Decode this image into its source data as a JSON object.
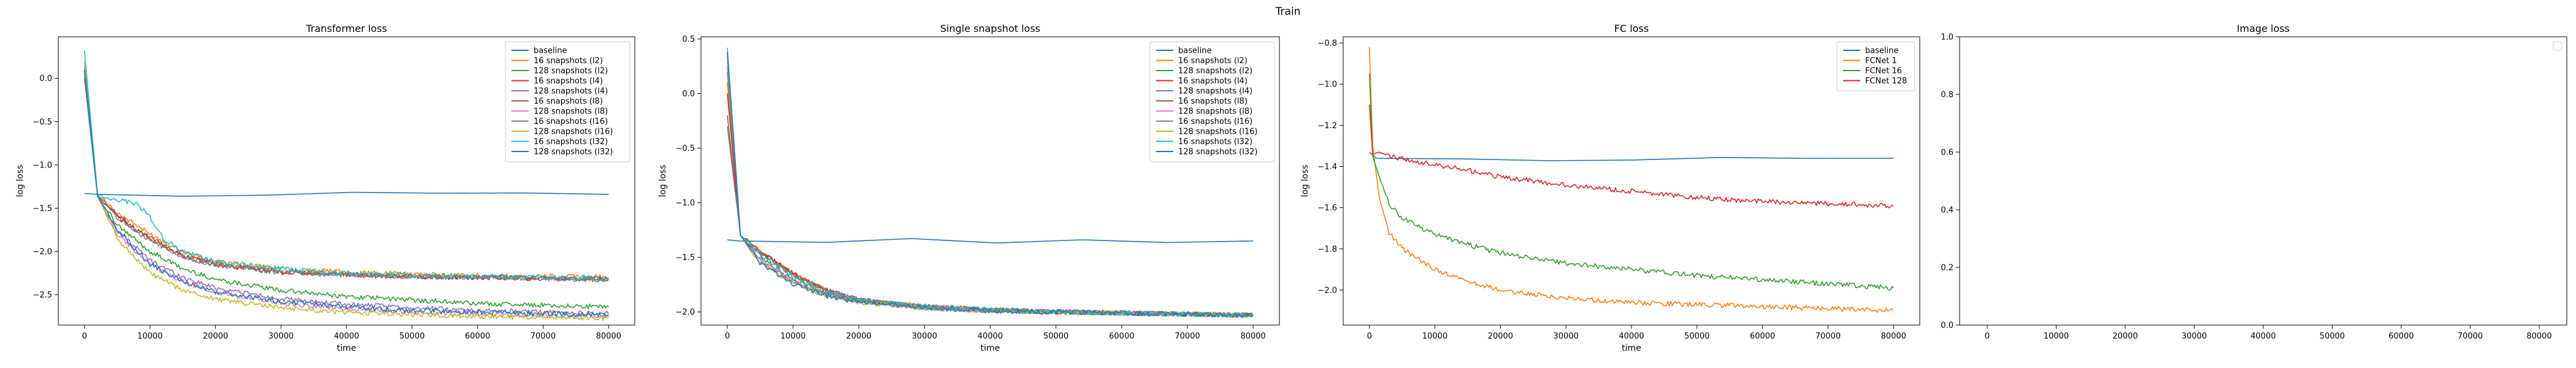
{
  "figure": {
    "title": "Train"
  },
  "chart_data": [
    {
      "type": "line",
      "title": "Transformer loss",
      "xlabel": "time",
      "ylabel": "log loss",
      "xlim": [
        -4000,
        84000
      ],
      "ylim": [
        -2.85,
        0.48
      ],
      "xticks": [
        0,
        10000,
        20000,
        30000,
        40000,
        50000,
        60000,
        70000,
        80000
      ],
      "yticks": [
        -2.5,
        -2.0,
        -1.5,
        -1.0,
        -0.5,
        0.0
      ],
      "ytick_labels": [
        "−2.5",
        "−2.0",
        "−1.5",
        "−1.0",
        "−0.5",
        "0.0"
      ],
      "grid": false,
      "legend_position": "upper-right",
      "series": [
        {
          "name": "baseline",
          "color": "#1f77b4",
          "x": [
            0,
            2000,
            80000
          ],
          "y": [
            -1.33,
            -1.34,
            -1.34
          ]
        },
        {
          "name": "16 snapshots (l2)",
          "color": "#ff7f0e",
          "x": [
            0,
            2000,
            5000,
            10000,
            15000,
            20000,
            30000,
            40000,
            50000,
            60000,
            70000,
            80000
          ],
          "y": [
            0.05,
            -1.35,
            -1.55,
            -1.8,
            -2.0,
            -2.12,
            -2.2,
            -2.24,
            -2.26,
            -2.28,
            -2.29,
            -2.3
          ]
        },
        {
          "name": "128 snapshots (l2)",
          "color": "#2ca02c",
          "x": [
            0,
            2000,
            5000,
            10000,
            15000,
            20000,
            30000,
            40000,
            50000,
            60000,
            70000,
            80000
          ],
          "y": [
            0.1,
            -1.36,
            -1.7,
            -2.0,
            -2.2,
            -2.32,
            -2.45,
            -2.52,
            -2.56,
            -2.6,
            -2.62,
            -2.64
          ]
        },
        {
          "name": "16 snapshots (l4)",
          "color": "#d62728",
          "x": [
            0,
            2000,
            5000,
            10000,
            15000,
            20000,
            30000,
            40000,
            50000,
            60000,
            70000,
            80000
          ],
          "y": [
            0.0,
            -1.35,
            -1.6,
            -1.85,
            -2.05,
            -2.15,
            -2.24,
            -2.27,
            -2.29,
            -2.3,
            -2.31,
            -2.32
          ]
        },
        {
          "name": "128 snapshots (l4)",
          "color": "#9467bd",
          "x": [
            0,
            2000,
            5000,
            10000,
            15000,
            20000,
            30000,
            40000,
            50000,
            60000,
            70000,
            80000
          ],
          "y": [
            0.1,
            -1.36,
            -1.75,
            -2.1,
            -2.3,
            -2.42,
            -2.55,
            -2.61,
            -2.65,
            -2.68,
            -2.7,
            -2.72
          ]
        },
        {
          "name": "16 snapshots (l8)",
          "color": "#8c564b",
          "x": [
            0,
            2000,
            5000,
            10000,
            15000,
            20000,
            30000,
            40000,
            50000,
            60000,
            70000,
            80000
          ],
          "y": [
            0.0,
            -1.35,
            -1.58,
            -1.85,
            -2.05,
            -2.15,
            -2.23,
            -2.27,
            -2.29,
            -2.3,
            -2.31,
            -2.32
          ]
        },
        {
          "name": "128 snapshots (l8)",
          "color": "#e377c2",
          "x": [
            0,
            2000,
            5000,
            10000,
            15000,
            20000,
            30000,
            40000,
            50000,
            60000,
            70000,
            80000
          ],
          "y": [
            0.15,
            -1.36,
            -1.8,
            -2.15,
            -2.35,
            -2.47,
            -2.6,
            -2.66,
            -2.7,
            -2.72,
            -2.74,
            -2.75
          ]
        },
        {
          "name": "16 snapshots (l16)",
          "color": "#7f7f7f",
          "x": [
            0,
            2000,
            5000,
            10000,
            15000,
            20000,
            30000,
            40000,
            50000,
            60000,
            70000,
            80000
          ],
          "y": [
            0.0,
            -1.35,
            -1.6,
            -1.88,
            -2.06,
            -2.16,
            -2.24,
            -2.27,
            -2.29,
            -2.3,
            -2.31,
            -2.33
          ]
        },
        {
          "name": "128 snapshots (l16)",
          "color": "#bcbd22",
          "x": [
            0,
            2000,
            5000,
            10000,
            15000,
            20000,
            30000,
            40000,
            50000,
            60000,
            70000,
            80000
          ],
          "y": [
            0.2,
            -1.36,
            -1.85,
            -2.25,
            -2.45,
            -2.55,
            -2.65,
            -2.7,
            -2.73,
            -2.75,
            -2.76,
            -2.77
          ]
        },
        {
          "name": "16 snapshots (l32)",
          "color": "#17becf",
          "x": [
            0,
            2000,
            5000,
            8000,
            10000,
            12000,
            15000,
            20000,
            30000,
            40000,
            50000,
            60000,
            70000,
            80000
          ],
          "y": [
            0.32,
            -1.34,
            -1.4,
            -1.45,
            -1.6,
            -1.85,
            -2.0,
            -2.12,
            -2.2,
            -2.25,
            -2.27,
            -2.29,
            -2.3,
            -2.31
          ]
        },
        {
          "name": "128 snapshots (l32)",
          "color": "#1f77b4",
          "x": [
            0,
            2000,
            5000,
            10000,
            15000,
            20000,
            30000,
            40000,
            50000,
            60000,
            70000,
            80000
          ],
          "y": [
            0.1,
            -1.36,
            -1.75,
            -2.15,
            -2.35,
            -2.47,
            -2.58,
            -2.64,
            -2.68,
            -2.7,
            -2.72,
            -2.73
          ]
        }
      ]
    },
    {
      "type": "line",
      "title": "Single snapshot loss",
      "xlabel": "time",
      "ylabel": "log loss",
      "xlim": [
        -4000,
        84000
      ],
      "ylim": [
        -2.12,
        0.52
      ],
      "xticks": [
        0,
        10000,
        20000,
        30000,
        40000,
        50000,
        60000,
        70000,
        80000
      ],
      "yticks": [
        -2.0,
        -1.5,
        -1.0,
        -0.5,
        0.0,
        0.5
      ],
      "ytick_labels": [
        "−2.0",
        "−1.5",
        "−1.0",
        "−0.5",
        "0.0",
        "0.5"
      ],
      "grid": false,
      "legend_position": "upper-right",
      "series": [
        {
          "name": "baseline",
          "color": "#1f77b4",
          "x": [
            0,
            2000,
            80000
          ],
          "y": [
            -1.34,
            -1.35,
            -1.35
          ]
        },
        {
          "name": "16 snapshots (l2)",
          "color": "#ff7f0e",
          "x": [
            0,
            2000,
            5000,
            10000,
            15000,
            20000,
            30000,
            40000,
            50000,
            60000,
            70000,
            80000
          ],
          "y": [
            0.1,
            -1.3,
            -1.45,
            -1.65,
            -1.8,
            -1.89,
            -1.95,
            -1.98,
            -2.0,
            -2.01,
            -2.02,
            -2.03
          ]
        },
        {
          "name": "128 snapshots (l2)",
          "color": "#2ca02c",
          "x": [
            0,
            2000,
            5000,
            10000,
            15000,
            20000,
            30000,
            40000,
            50000,
            60000,
            70000,
            80000
          ],
          "y": [
            0.2,
            -1.3,
            -1.5,
            -1.7,
            -1.83,
            -1.9,
            -1.96,
            -1.99,
            -2.0,
            -2.01,
            -2.02,
            -2.03
          ]
        },
        {
          "name": "16 snapshots (l4)",
          "color": "#d62728",
          "x": [
            0,
            2000,
            5000,
            10000,
            15000,
            20000,
            30000,
            40000,
            50000,
            60000,
            70000,
            80000
          ],
          "y": [
            0.0,
            -1.3,
            -1.45,
            -1.65,
            -1.8,
            -1.89,
            -1.95,
            -1.98,
            -2.0,
            -2.01,
            -2.02,
            -2.03
          ]
        },
        {
          "name": "128 snapshots (l4)",
          "color": "#9467bd",
          "x": [
            0,
            2000,
            5000,
            10000,
            15000,
            20000,
            30000,
            40000,
            50000,
            60000,
            70000,
            80000
          ],
          "y": [
            0.25,
            -1.3,
            -1.52,
            -1.72,
            -1.84,
            -1.9,
            -1.96,
            -1.99,
            -2.0,
            -2.01,
            -2.02,
            -2.03
          ]
        },
        {
          "name": "16 snapshots (l8)",
          "color": "#8c564b",
          "x": [
            0,
            2000,
            5000,
            10000,
            15000,
            20000,
            30000,
            40000,
            50000,
            60000,
            70000,
            80000
          ],
          "y": [
            -0.2,
            -1.3,
            -1.45,
            -1.66,
            -1.8,
            -1.89,
            -1.95,
            -1.98,
            -2.0,
            -2.01,
            -2.02,
            -2.03
          ]
        },
        {
          "name": "128 snapshots (l8)",
          "color": "#e377c2",
          "x": [
            0,
            2000,
            5000,
            10000,
            15000,
            20000,
            30000,
            40000,
            50000,
            60000,
            70000,
            80000
          ],
          "y": [
            0.3,
            -1.3,
            -1.52,
            -1.72,
            -1.84,
            -1.9,
            -1.96,
            -1.99,
            -2.0,
            -2.01,
            -2.02,
            -2.03
          ]
        },
        {
          "name": "16 snapshots (l16)",
          "color": "#7f7f7f",
          "x": [
            0,
            2000,
            5000,
            10000,
            15000,
            20000,
            30000,
            40000,
            50000,
            60000,
            70000,
            80000
          ],
          "y": [
            -0.3,
            -1.3,
            -1.46,
            -1.66,
            -1.8,
            -1.89,
            -1.95,
            -1.98,
            -2.0,
            -2.01,
            -2.02,
            -2.03
          ]
        },
        {
          "name": "128 snapshots (l16)",
          "color": "#bcbd22",
          "x": [
            0,
            2000,
            5000,
            10000,
            15000,
            20000,
            30000,
            40000,
            50000,
            60000,
            70000,
            80000
          ],
          "y": [
            0.35,
            -1.3,
            -1.55,
            -1.74,
            -1.85,
            -1.91,
            -1.96,
            -1.99,
            -2.0,
            -2.01,
            -2.02,
            -2.03
          ]
        },
        {
          "name": "16 snapshots (l32)",
          "color": "#17becf",
          "x": [
            0,
            2000,
            5000,
            10000,
            15000,
            20000,
            30000,
            40000,
            50000,
            60000,
            70000,
            80000
          ],
          "y": [
            0.42,
            -1.3,
            -1.48,
            -1.68,
            -1.82,
            -1.89,
            -1.95,
            -1.98,
            -2.0,
            -2.01,
            -2.02,
            -2.03
          ]
        },
        {
          "name": "128 snapshots (l32)",
          "color": "#1f77b4",
          "x": [
            0,
            2000,
            5000,
            10000,
            15000,
            20000,
            30000,
            40000,
            50000,
            60000,
            70000,
            80000
          ],
          "y": [
            0.38,
            -1.3,
            -1.55,
            -1.74,
            -1.85,
            -1.91,
            -1.96,
            -1.99,
            -2.0,
            -2.01,
            -2.02,
            -2.03
          ]
        }
      ]
    },
    {
      "type": "line",
      "title": "FC loss",
      "xlabel": "time",
      "ylabel": "log loss",
      "xlim": [
        -4000,
        84000
      ],
      "ylim": [
        -2.17,
        -0.77
      ],
      "xticks": [
        0,
        10000,
        20000,
        30000,
        40000,
        50000,
        60000,
        70000,
        80000
      ],
      "yticks": [
        -2.0,
        -1.8,
        -1.6,
        -1.4,
        -1.2,
        -1.0,
        -0.8
      ],
      "ytick_labels": [
        "−2.0",
        "−1.8",
        "−1.6",
        "−1.4",
        "−1.2",
        "−1.0",
        "−0.8"
      ],
      "grid": false,
      "legend_position": "upper-right",
      "series": [
        {
          "name": "baseline",
          "color": "#1f77b4",
          "x": [
            0,
            1000,
            80000
          ],
          "y": [
            -1.33,
            -1.36,
            -1.36
          ]
        },
        {
          "name": "FCNet 1",
          "color": "#ff7f0e",
          "x": [
            0,
            500,
            1500,
            3000,
            5000,
            8000,
            10000,
            15000,
            20000,
            30000,
            40000,
            50000,
            60000,
            70000,
            80000
          ],
          "y": [
            -0.82,
            -1.3,
            -1.55,
            -1.72,
            -1.8,
            -1.86,
            -1.9,
            -1.96,
            -2.0,
            -2.04,
            -2.06,
            -2.07,
            -2.08,
            -2.09,
            -2.1
          ]
        },
        {
          "name": "FCNet 16",
          "color": "#2ca02c",
          "x": [
            0,
            500,
            1500,
            3000,
            5000,
            8000,
            10000,
            15000,
            20000,
            30000,
            40000,
            50000,
            60000,
            70000,
            80000
          ],
          "y": [
            -0.95,
            -1.35,
            -1.45,
            -1.58,
            -1.65,
            -1.7,
            -1.73,
            -1.78,
            -1.82,
            -1.87,
            -1.9,
            -1.93,
            -1.95,
            -1.97,
            -1.99
          ]
        },
        {
          "name": "FCNet 128",
          "color": "#d62728",
          "x": [
            0,
            500,
            1500,
            3000,
            5000,
            8000,
            10000,
            15000,
            20000,
            30000,
            40000,
            50000,
            60000,
            70000,
            80000
          ],
          "y": [
            -1.1,
            -1.34,
            -1.33,
            -1.35,
            -1.36,
            -1.38,
            -1.39,
            -1.42,
            -1.45,
            -1.49,
            -1.52,
            -1.55,
            -1.57,
            -1.58,
            -1.59
          ]
        }
      ]
    },
    {
      "type": "line",
      "title": "Image loss",
      "xlabel": "",
      "ylabel": "",
      "xlim": [
        -4000,
        84000
      ],
      "ylim": [
        0,
        1
      ],
      "xticks": [
        0,
        10000,
        20000,
        30000,
        40000,
        50000,
        60000,
        70000,
        80000
      ],
      "yticks": [
        0.0,
        0.2,
        0.4,
        0.6,
        0.8,
        1.0
      ],
      "ytick_labels": [
        "0.0",
        "0.2",
        "0.4",
        "0.6",
        "0.8",
        "1.0"
      ],
      "grid": false,
      "legend_position": "upper-right",
      "series": []
    }
  ]
}
